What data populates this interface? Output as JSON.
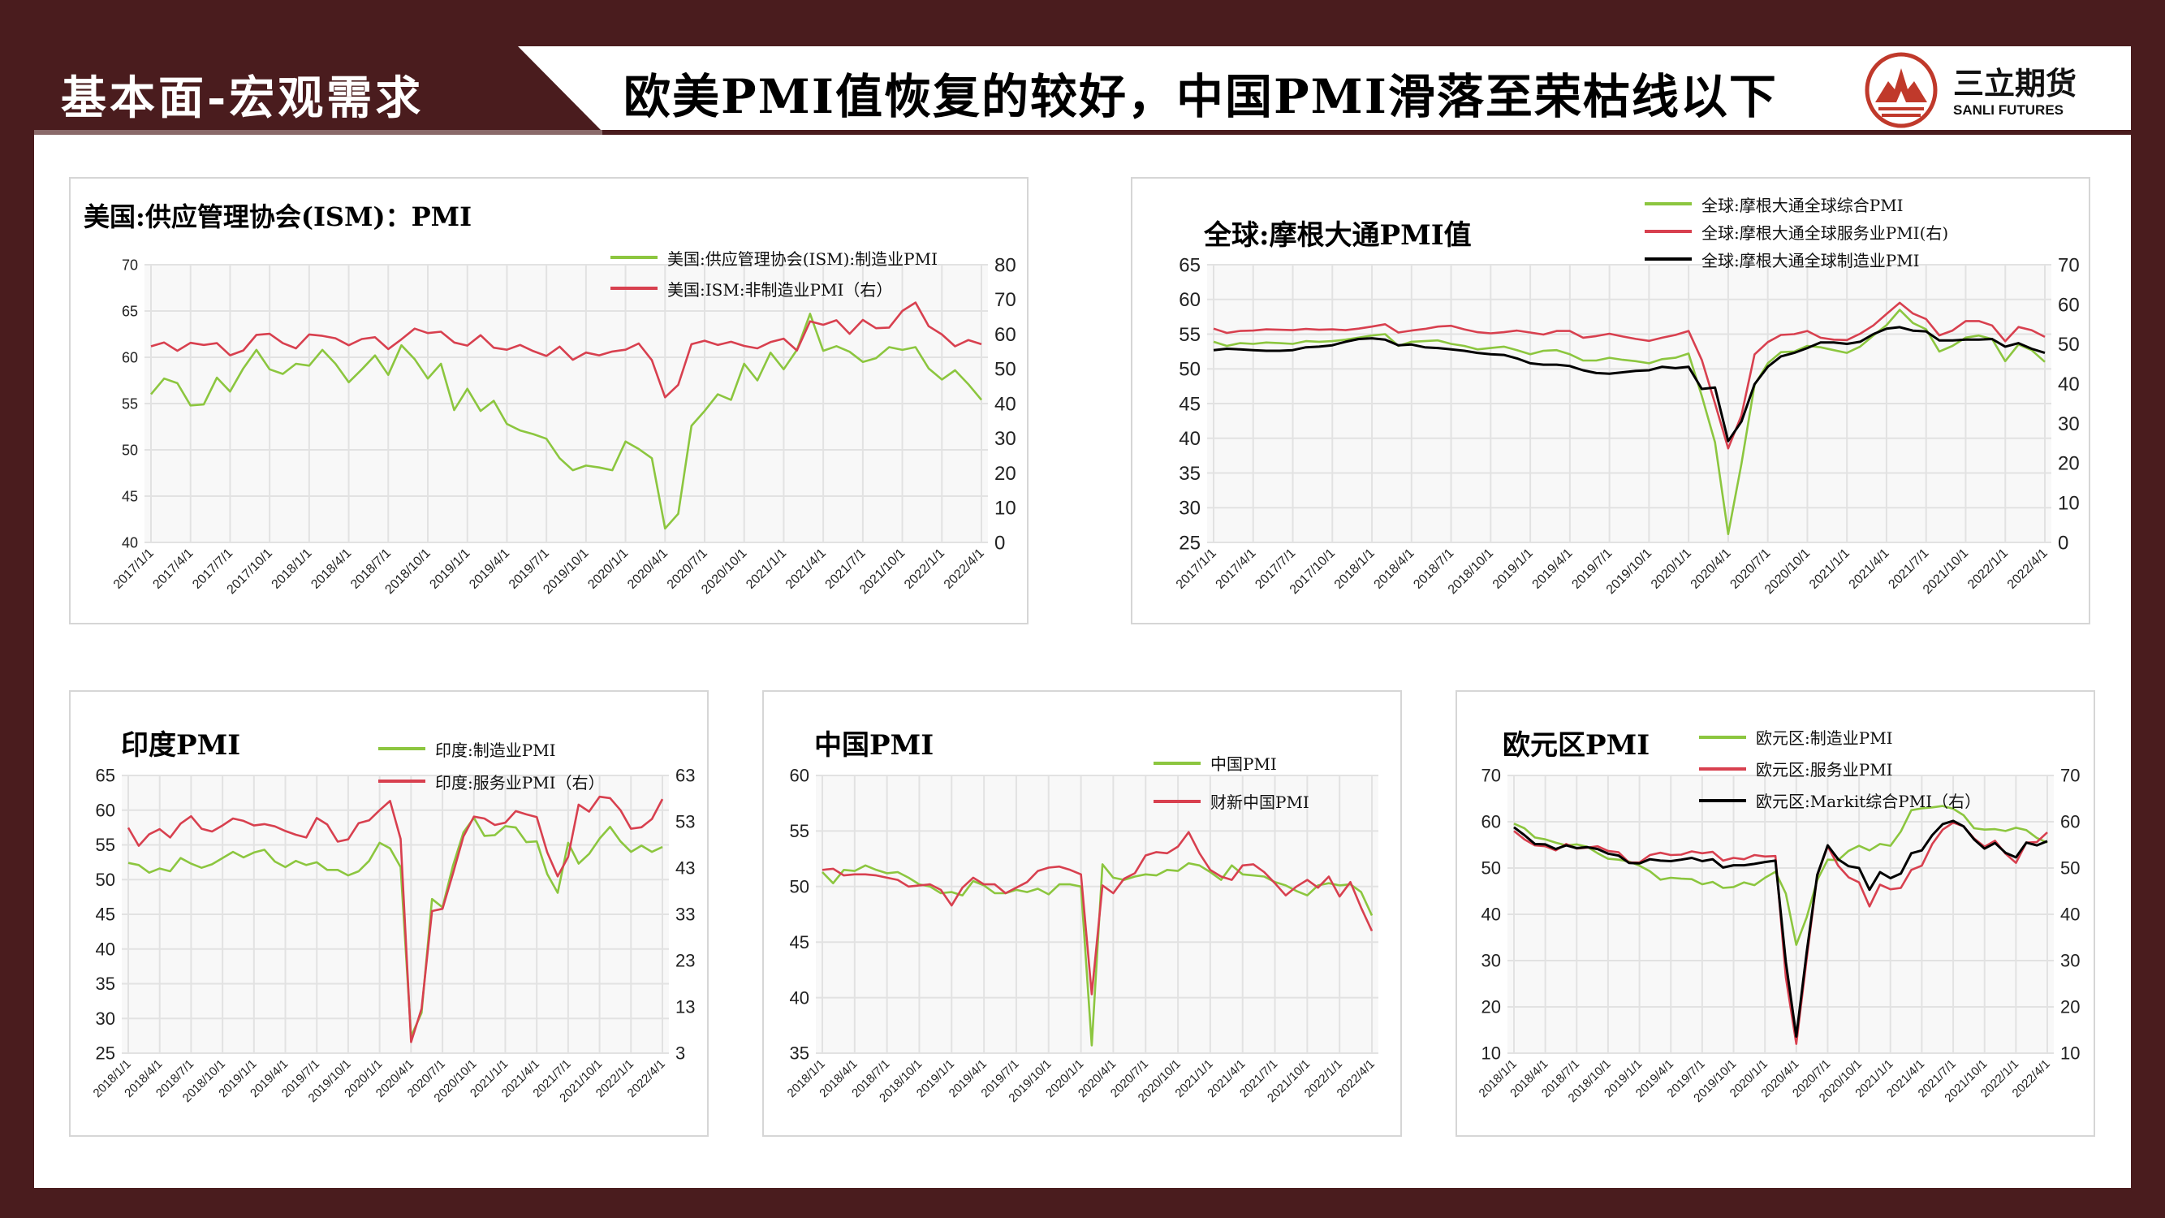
{
  "header": {
    "section_title": "基本面-宏观需求",
    "slide_title": "欧美PMI值恢复的较好，中国PMI滑落至荣枯线以下",
    "logo_cn": "三立期货",
    "logo_en": "SANLI FUTURES"
  },
  "colors": {
    "background": "#4a1c1e",
    "green": "#8cc63f",
    "red": "#d8404f",
    "black": "#000000",
    "logo": "#c0392b"
  },
  "chart_data": [
    {
      "id": "us",
      "type": "line",
      "title": "美国:供应管理协会(ISM)：PMI",
      "x_frequency": "monthly",
      "x_range": [
        "2017/1",
        "2022/4"
      ],
      "xticks": [
        "2017/1/1",
        "2017/4/1",
        "2017/7/1",
        "2017/10/1",
        "2018/1/1",
        "2018/4/1",
        "2018/7/1",
        "2018/10/1",
        "2019/1/1",
        "2019/4/1",
        "2019/7/1",
        "2019/10/1",
        "2020/1/1",
        "2020/4/1",
        "2020/7/1",
        "2020/10/1",
        "2021/1/1",
        "2021/4/1",
        "2021/7/1",
        "2021/10/1",
        "2022/1/1",
        "2022/4/1"
      ],
      "ylim": [
        40,
        70
      ],
      "yticks": [
        40,
        45,
        50,
        55,
        60,
        65,
        70
      ],
      "y2lim": [
        0,
        80
      ],
      "y2ticks": [
        0,
        10,
        20,
        30,
        40,
        50,
        60,
        70,
        80
      ],
      "grid": true,
      "legend": "top-right",
      "series": [
        {
          "name": "美国:供应管理协会(ISM):制造业PMI",
          "color": "#8cc63f",
          "axis": "left",
          "values": [
            56.0,
            57.7,
            57.2,
            54.8,
            54.9,
            57.8,
            56.3,
            58.8,
            60.8,
            58.7,
            58.2,
            59.3,
            59.1,
            60.8,
            59.3,
            57.3,
            58.7,
            60.2,
            58.1,
            61.3,
            59.8,
            57.7,
            59.3,
            54.3,
            56.6,
            54.2,
            55.3,
            52.8,
            52.1,
            51.7,
            51.2,
            49.1,
            47.8,
            48.3,
            48.1,
            47.8,
            50.9,
            50.1,
            49.1,
            41.5,
            43.1,
            52.6,
            54.2,
            56.0,
            55.4,
            59.3,
            57.5,
            60.5,
            58.7,
            60.8,
            64.7,
            60.7,
            61.2,
            60.6,
            59.5,
            59.9,
            61.1,
            60.8,
            61.1,
            58.8,
            57.6,
            58.6,
            57.1,
            55.4
          ]
        },
        {
          "name": "美国:ISM:非制造业PMI（右）",
          "color": "#d8404f",
          "axis": "right",
          "values": [
            56.5,
            57.6,
            55.2,
            57.5,
            56.9,
            57.4,
            53.9,
            55.3,
            59.8,
            60.1,
            57.4,
            55.9,
            59.9,
            59.5,
            58.8,
            56.8,
            58.6,
            59.1,
            55.7,
            58.5,
            61.6,
            60.3,
            60.7,
            57.6,
            56.7,
            59.7,
            56.1,
            55.5,
            56.9,
            55.1,
            53.7,
            56.4,
            52.6,
            54.7,
            53.9,
            55.0,
            55.5,
            57.3,
            52.5,
            41.8,
            45.4,
            57.1,
            58.1,
            56.9,
            57.8,
            56.6,
            55.9,
            57.7,
            58.7,
            55.3,
            63.7,
            62.7,
            64.0,
            60.1,
            64.1,
            61.7,
            61.9,
            66.7,
            69.1,
            62.3,
            59.9,
            56.5,
            58.3,
            57.1
          ]
        }
      ]
    },
    {
      "id": "global",
      "type": "line",
      "title": "全球:摩根大通PMI值",
      "x_frequency": "monthly",
      "x_range": [
        "2017/1",
        "2022/4"
      ],
      "xticks": [
        "2017/1/1",
        "2017/4/1",
        "2017/7/1",
        "2017/10/1",
        "2018/1/1",
        "2018/4/1",
        "2018/7/1",
        "2018/10/1",
        "2019/1/1",
        "2019/4/1",
        "2019/7/1",
        "2019/10/1",
        "2020/1/1",
        "2020/4/1",
        "2020/7/1",
        "2020/10/1",
        "2021/1/1",
        "2021/4/1",
        "2021/7/1",
        "2021/10/1",
        "2022/1/1",
        "2022/4/1"
      ],
      "ylim": [
        25,
        65
      ],
      "yticks": [
        25,
        30,
        35,
        40,
        45,
        50,
        55,
        60,
        65
      ],
      "y2lim": [
        0,
        70
      ],
      "y2ticks": [
        0,
        10,
        20,
        30,
        40,
        50,
        60,
        70
      ],
      "grid": true,
      "legend": "top-right",
      "series": [
        {
          "name": "全球:摩根大通全球综合PMI",
          "color": "#8cc63f",
          "axis": "left",
          "values": [
            53.9,
            53.3,
            53.7,
            53.6,
            53.8,
            53.7,
            53.6,
            54.0,
            53.9,
            54.0,
            54.2,
            54.5,
            54.8,
            55.0,
            53.3,
            53.9,
            54.0,
            54.1,
            53.6,
            53.3,
            52.8,
            53.0,
            53.2,
            52.7,
            52.1,
            52.6,
            52.7,
            52.1,
            51.2,
            51.2,
            51.6,
            51.3,
            51.1,
            50.8,
            51.4,
            51.6,
            52.2,
            46.1,
            39.4,
            26.2,
            36.3,
            47.7,
            50.8,
            52.4,
            52.5,
            53.3,
            53.1,
            52.7,
            52.3,
            53.2,
            54.8,
            56.3,
            58.5,
            56.6,
            55.7,
            52.5,
            53.3,
            54.5,
            54.8,
            54.3,
            51.1,
            53.5,
            52.7,
            51.0
          ]
        },
        {
          "name": "全球:摩根大通全球服务业PMI(右)",
          "color": "#d8404f",
          "axis": "right",
          "values": [
            53.9,
            52.8,
            53.3,
            53.4,
            53.7,
            53.6,
            53.5,
            53.8,
            53.6,
            53.7,
            53.5,
            53.9,
            54.4,
            55.0,
            52.9,
            53.4,
            53.8,
            54.4,
            54.6,
            53.7,
            53.0,
            52.7,
            53.0,
            53.4,
            52.9,
            52.4,
            53.3,
            53.3,
            51.6,
            52.0,
            52.6,
            51.9,
            51.3,
            50.8,
            51.6,
            52.3,
            53.3,
            46.0,
            35.0,
            23.7,
            32.0,
            47.4,
            50.5,
            52.3,
            52.5,
            53.3,
            51.6,
            51.1,
            51.0,
            52.6,
            54.7,
            57.6,
            60.4,
            57.7,
            56.3,
            52.2,
            53.4,
            55.8,
            55.8,
            54.7,
            50.7,
            54.3,
            53.5,
            51.8
          ]
        },
        {
          "name": "全球:摩根大通全球制造业PMI",
          "color": "#000000",
          "axis": "left",
          "values": [
            52.7,
            52.9,
            52.8,
            52.7,
            52.6,
            52.6,
            52.7,
            53.1,
            53.2,
            53.4,
            53.9,
            54.3,
            54.4,
            54.2,
            53.4,
            53.5,
            53.1,
            53.0,
            52.8,
            52.6,
            52.3,
            52.1,
            52.0,
            51.5,
            50.8,
            50.6,
            50.6,
            50.4,
            49.8,
            49.4,
            49.3,
            49.5,
            49.7,
            49.8,
            50.3,
            50.1,
            50.3,
            47.1,
            47.3,
            39.6,
            42.4,
            47.8,
            50.3,
            51.8,
            52.3,
            53.0,
            53.8,
            53.8,
            53.6,
            53.9,
            55.0,
            55.8,
            56.0,
            55.5,
            55.4,
            54.1,
            54.1,
            54.2,
            54.2,
            54.3,
            53.2,
            53.7,
            52.9,
            52.3
          ]
        }
      ]
    },
    {
      "id": "india",
      "type": "line",
      "title": "印度PMI",
      "x_frequency": "monthly",
      "x_range": [
        "2018/1",
        "2022/4"
      ],
      "xticks": [
        "2018/1/1",
        "2018/4/1",
        "2018/7/1",
        "2018/10/1",
        "2019/1/1",
        "2019/4/1",
        "2019/7/1",
        "2019/10/1",
        "2020/1/1",
        "2020/4/1",
        "2020/7/1",
        "2020/10/1",
        "2021/1/1",
        "2021/4/1",
        "2021/7/1",
        "2021/10/1",
        "2022/1/1",
        "2022/4/1"
      ],
      "ylim": [
        25,
        65
      ],
      "yticks": [
        25,
        30,
        35,
        40,
        45,
        50,
        55,
        60,
        65
      ],
      "y2lim": [
        3,
        63
      ],
      "y2ticks": [
        3,
        13,
        23,
        33,
        43,
        53,
        63
      ],
      "grid": true,
      "legend": "top-right",
      "series": [
        {
          "name": "印度:制造业PMI",
          "color": "#8cc63f",
          "axis": "left",
          "values": [
            52.4,
            52.1,
            51.0,
            51.6,
            51.2,
            53.1,
            52.3,
            51.7,
            52.2,
            53.1,
            54.0,
            53.2,
            53.9,
            54.3,
            52.6,
            51.8,
            52.7,
            52.1,
            52.5,
            51.4,
            51.4,
            50.6,
            51.2,
            52.7,
            55.3,
            54.5,
            51.8,
            27.4,
            30.8,
            47.2,
            46.0,
            52.0,
            56.8,
            58.9,
            56.3,
            56.4,
            57.7,
            57.5,
            55.4,
            55.5,
            50.8,
            48.1,
            55.3,
            52.3,
            53.7,
            55.9,
            57.6,
            55.5,
            54.0,
            54.9,
            54.0,
            54.7
          ]
        },
        {
          "name": "印度:服务业PMI（右）",
          "color": "#d8404f",
          "axis": "right",
          "values": [
            51.7,
            47.8,
            50.3,
            51.4,
            49.6,
            52.6,
            54.2,
            51.5,
            50.9,
            52.2,
            53.7,
            53.2,
            52.2,
            52.5,
            52.0,
            51.0,
            50.2,
            49.6,
            53.8,
            52.4,
            48.7,
            49.2,
            52.7,
            53.3,
            55.5,
            57.5,
            49.3,
            5.4,
            12.6,
            33.7,
            34.2,
            41.8,
            49.8,
            54.1,
            53.7,
            52.3,
            52.8,
            55.3,
            54.6,
            54.0,
            46.4,
            41.2,
            45.4,
            56.7,
            55.2,
            58.4,
            58.1,
            55.5,
            51.5,
            51.8,
            53.6,
            57.9
          ]
        }
      ]
    },
    {
      "id": "china",
      "type": "line",
      "title": "中国PMI",
      "x_frequency": "monthly",
      "x_range": [
        "2018/1",
        "2022/4"
      ],
      "xticks": [
        "2018/1/1",
        "2018/4/1",
        "2018/7/1",
        "2018/10/1",
        "2019/1/1",
        "2019/4/1",
        "2019/7/1",
        "2019/10/1",
        "2020/1/1",
        "2020/4/1",
        "2020/7/1",
        "2020/10/1",
        "2021/1/1",
        "2021/4/1",
        "2021/7/1",
        "2021/10/1",
        "2022/1/1",
        "2022/4/1"
      ],
      "ylim": [
        35,
        60
      ],
      "yticks": [
        35,
        40,
        45,
        50,
        55,
        60
      ],
      "grid": true,
      "legend": "top-right",
      "series": [
        {
          "name": "中国PMI",
          "color": "#8cc63f",
          "axis": "left",
          "values": [
            51.3,
            50.3,
            51.5,
            51.4,
            51.9,
            51.5,
            51.2,
            51.3,
            50.8,
            50.2,
            50.0,
            49.4,
            49.5,
            49.2,
            50.5,
            50.1,
            49.4,
            49.4,
            49.7,
            49.5,
            49.8,
            49.3,
            50.2,
            50.2,
            50.0,
            35.7,
            52.0,
            50.8,
            50.6,
            50.9,
            51.1,
            51.0,
            51.5,
            51.4,
            52.1,
            51.9,
            51.3,
            50.6,
            51.9,
            51.1,
            51.0,
            50.9,
            50.4,
            50.1,
            49.6,
            49.2,
            50.1,
            50.3,
            50.1,
            50.2,
            49.5,
            47.4
          ]
        },
        {
          "name": "财新中国PMI",
          "color": "#d8404f",
          "axis": "left",
          "values": [
            51.5,
            51.6,
            51.0,
            51.1,
            51.1,
            51.0,
            50.8,
            50.6,
            50.0,
            50.1,
            50.2,
            49.7,
            48.3,
            49.9,
            50.8,
            50.2,
            50.2,
            49.4,
            49.9,
            50.4,
            51.4,
            51.7,
            51.8,
            51.5,
            51.1,
            40.3,
            50.1,
            49.4,
            50.7,
            51.2,
            52.8,
            53.1,
            53.0,
            53.6,
            54.9,
            53.0,
            51.5,
            50.9,
            50.6,
            51.9,
            52.0,
            51.3,
            50.3,
            49.2,
            50.0,
            50.6,
            49.9,
            50.9,
            49.1,
            50.4,
            48.1,
            46.0
          ]
        }
      ]
    },
    {
      "id": "euro",
      "type": "line",
      "title": "欧元区PMI",
      "x_frequency": "monthly",
      "x_range": [
        "2018/1",
        "2022/4"
      ],
      "xticks": [
        "2018/1/1",
        "2018/4/1",
        "2018/7/1",
        "2018/10/1",
        "2019/1/1",
        "2019/4/1",
        "2019/7/1",
        "2019/10/1",
        "2020/1/1",
        "2020/4/1",
        "2020/7/1",
        "2020/10/1",
        "2021/1/1",
        "2021/4/1",
        "2021/7/1",
        "2021/10/1",
        "2022/1/1",
        "2022/4/1"
      ],
      "ylim": [
        10,
        70
      ],
      "yticks": [
        10,
        20,
        30,
        40,
        50,
        60,
        70
      ],
      "y2lim": [
        10,
        70
      ],
      "y2ticks": [
        10,
        20,
        30,
        40,
        50,
        60,
        70
      ],
      "grid": true,
      "legend": "top-right",
      "series": [
        {
          "name": "欧元区:制造业PMI",
          "color": "#8cc63f",
          "axis": "left",
          "values": [
            59.6,
            58.6,
            56.6,
            56.2,
            55.5,
            54.9,
            55.1,
            54.6,
            53.2,
            52.0,
            51.8,
            51.4,
            50.5,
            49.3,
            47.5,
            47.9,
            47.7,
            47.6,
            46.5,
            47.0,
            45.7,
            45.9,
            46.9,
            46.3,
            47.9,
            49.2,
            44.5,
            33.4,
            39.4,
            47.4,
            51.8,
            51.7,
            53.7,
            54.8,
            53.8,
            55.2,
            54.8,
            57.9,
            62.5,
            62.9,
            63.1,
            63.4,
            62.8,
            61.4,
            58.6,
            58.3,
            58.4,
            58.0,
            58.7,
            58.2,
            56.5,
            55.5
          ]
        },
        {
          "name": "欧元区:服务业PMI",
          "color": "#d8404f",
          "axis": "left",
          "values": [
            58.0,
            56.2,
            54.9,
            54.7,
            53.8,
            55.2,
            54.2,
            54.4,
            54.7,
            53.7,
            53.4,
            51.2,
            51.2,
            52.8,
            53.3,
            52.8,
            52.9,
            53.6,
            53.2,
            53.5,
            51.6,
            52.2,
            51.9,
            52.8,
            52.5,
            52.6,
            26.4,
            12.0,
            30.5,
            48.3,
            54.7,
            50.5,
            48.0,
            46.9,
            41.7,
            46.4,
            45.4,
            45.7,
            49.6,
            50.5,
            55.2,
            58.3,
            59.8,
            59.0,
            56.4,
            54.6,
            55.9,
            53.1,
            51.1,
            55.5,
            55.6,
            57.7
          ]
        },
        {
          "name": "欧元区:Markit综合PMI（右）",
          "color": "#000000",
          "axis": "right",
          "values": [
            58.8,
            57.1,
            55.2,
            55.1,
            54.1,
            54.9,
            54.3,
            54.5,
            54.1,
            53.1,
            52.7,
            51.1,
            51.0,
            51.9,
            51.6,
            51.5,
            51.8,
            52.2,
            51.5,
            51.9,
            50.1,
            50.6,
            50.6,
            50.9,
            51.3,
            51.6,
            29.7,
            13.6,
            31.9,
            48.5,
            54.9,
            51.9,
            50.4,
            50.0,
            45.3,
            49.1,
            47.8,
            48.8,
            53.2,
            53.8,
            57.1,
            59.5,
            60.2,
            59.0,
            56.2,
            54.2,
            55.4,
            53.3,
            52.3,
            55.5,
            54.9,
            55.8
          ]
        }
      ]
    }
  ]
}
